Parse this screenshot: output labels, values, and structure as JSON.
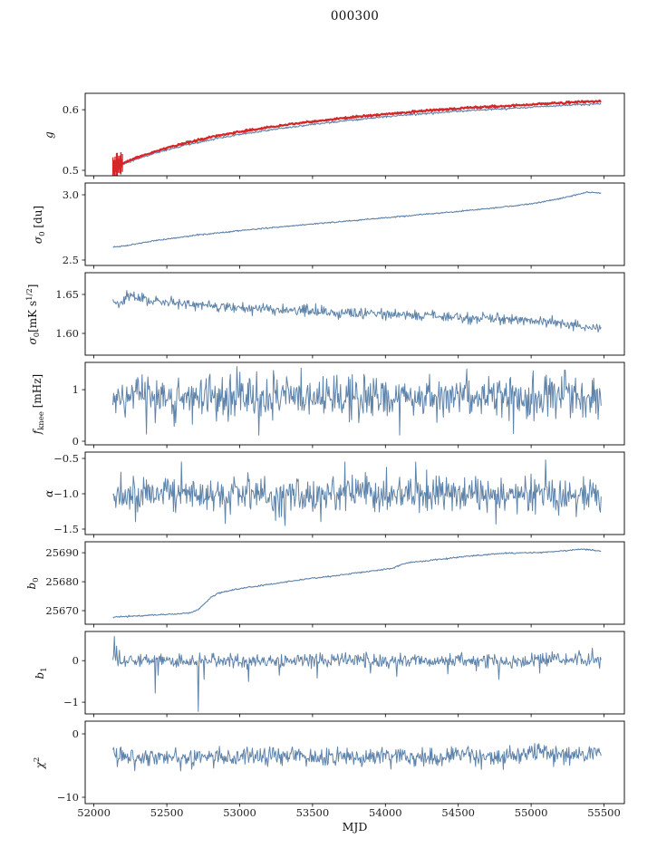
{
  "title": "000300",
  "xlabel": "MJD",
  "colors": {
    "series": "#5f84ab",
    "highlight": "#d62728",
    "frame": "#000000",
    "tick_text": "#222222"
  },
  "chart_data": {
    "type": "line",
    "xlim": [
      51940,
      55640
    ],
    "x_ticks": [
      52000,
      52500,
      53000,
      53500,
      54000,
      54500,
      55000,
      55500
    ],
    "x_start": 52130,
    "x_end": 55480,
    "n_points": 670,
    "panels": [
      {
        "ylabel": {
          "pre": "g",
          "sub": "",
          "mid": "",
          "sup": "",
          "post": ""
        },
        "ylim": [
          0.491,
          0.627
        ],
        "yticks": [
          {
            "v": 0.5,
            "label": "0.5"
          },
          {
            "v": 0.6,
            "label": "0.6"
          }
        ],
        "series": [
          {
            "name": "g-gain-fit",
            "color": "series",
            "width": 1.1,
            "noise": 0.0008,
            "anchors": [
              [
                52130,
                0.5035
              ],
              [
                52250,
                0.5145
              ],
              [
                52400,
                0.527
              ],
              [
                52600,
                0.54
              ],
              [
                52800,
                0.5505
              ],
              [
                53000,
                0.559
              ],
              [
                53200,
                0.5665
              ],
              [
                53400,
                0.573
              ],
              [
                53600,
                0.5785
              ],
              [
                53900,
                0.586
              ],
              [
                54200,
                0.5925
              ],
              [
                54500,
                0.5975
              ],
              [
                54800,
                0.6015
              ],
              [
                55000,
                0.604
              ],
              [
                55100,
                0.6055
              ],
              [
                55250,
                0.6075
              ],
              [
                55480,
                0.6095
              ]
            ]
          },
          {
            "name": "g-gain-measured",
            "color": "highlight",
            "width": 2.2,
            "noise": 0.0008,
            "errorbars": {
              "until": 52200,
              "half": 0.015
            },
            "anchors": [
              [
                52130,
                0.5045
              ],
              [
                52250,
                0.517
              ],
              [
                52400,
                0.53
              ],
              [
                52600,
                0.5435
              ],
              [
                52800,
                0.5545
              ],
              [
                53000,
                0.5635
              ],
              [
                53200,
                0.571
              ],
              [
                53400,
                0.5775
              ],
              [
                53600,
                0.583
              ],
              [
                53900,
                0.5905
              ],
              [
                54200,
                0.597
              ],
              [
                54500,
                0.602
              ],
              [
                54800,
                0.606
              ],
              [
                55000,
                0.6085
              ],
              [
                55100,
                0.61
              ],
              [
                55250,
                0.612
              ],
              [
                55480,
                0.614
              ]
            ]
          }
        ]
      },
      {
        "ylabel": {
          "pre": "σ",
          "sub": "0",
          "mid": "",
          "sup": "",
          "post": " [du]"
        },
        "ylim": [
          2.458,
          3.09
        ],
        "yticks": [
          {
            "v": 3.0,
            "label": "3.0"
          },
          {
            "v": 2.5,
            "label": "2.5"
          }
        ],
        "series": [
          {
            "name": "sigma0-du",
            "color": "series",
            "width": 1.1,
            "noise": 0.0025,
            "anchors": [
              [
                52130,
                2.598
              ],
              [
                52220,
                2.61
              ],
              [
                52400,
                2.645
              ],
              [
                52700,
                2.69
              ],
              [
                53000,
                2.725
              ],
              [
                53300,
                2.756
              ],
              [
                53600,
                2.785
              ],
              [
                53900,
                2.814
              ],
              [
                54200,
                2.843
              ],
              [
                54500,
                2.872
              ],
              [
                54800,
                2.905
              ],
              [
                55000,
                2.93
              ],
              [
                55200,
                2.97
              ],
              [
                55300,
                2.995
              ],
              [
                55380,
                3.02
              ],
              [
                55480,
                3.012
              ]
            ]
          }
        ]
      },
      {
        "ylabel": {
          "pre": "σ",
          "sub": "0",
          "mid": "[mK s",
          "sup": "1/2",
          "post": "]"
        },
        "ylim": [
          1.572,
          1.678
        ],
        "yticks": [
          {
            "v": 1.65,
            "label": "1.65"
          },
          {
            "v": 1.6,
            "label": "1.60"
          }
        ],
        "series": [
          {
            "name": "sigma0-mks",
            "color": "series",
            "width": 1.0,
            "noise": 0.0035,
            "anchors": [
              [
                52130,
                1.641
              ],
              [
                52170,
                1.634
              ],
              [
                52210,
                1.645
              ],
              [
                52260,
                1.648
              ],
              [
                52320,
                1.644
              ],
              [
                52400,
                1.641
              ],
              [
                52500,
                1.6415
              ],
              [
                52600,
                1.638
              ],
              [
                52700,
                1.636
              ],
              [
                52800,
                1.6365
              ],
              [
                52900,
                1.634
              ],
              [
                53000,
                1.6335
              ],
              [
                53100,
                1.632
              ],
              [
                53250,
                1.63
              ],
              [
                53400,
                1.6295
              ],
              [
                53550,
                1.628
              ],
              [
                53700,
                1.6265
              ],
              [
                53850,
                1.626
              ],
              [
                54000,
                1.6245
              ],
              [
                54150,
                1.623
              ],
              [
                54300,
                1.6225
              ],
              [
                54450,
                1.621
              ],
              [
                54600,
                1.6195
              ],
              [
                54750,
                1.619
              ],
              [
                54900,
                1.6175
              ],
              [
                55050,
                1.616
              ],
              [
                55150,
                1.6145
              ],
              [
                55250,
                1.611
              ],
              [
                55330,
                1.6085
              ],
              [
                55410,
                1.606
              ],
              [
                55480,
                1.608
              ]
            ]
          }
        ]
      },
      {
        "ylabel": {
          "pre": "f",
          "sub": "knee",
          "mid": "",
          "sup": "",
          "post": " [mHz]"
        },
        "ylim": [
          -0.07,
          1.53
        ],
        "yticks": [
          {
            "v": 1,
            "label": "1"
          },
          {
            "v": 0,
            "label": "0"
          }
        ],
        "series": [
          {
            "name": "fknee",
            "color": "series",
            "width": 1.0,
            "noise": 0.21,
            "spikes": [
              [
                52360,
                0.14
              ],
              [
                52980,
                1.45
              ],
              [
                53130,
                0.12
              ],
              [
                53420,
                1.42
              ],
              [
                54100,
                0.12
              ],
              [
                54560,
                1.4
              ],
              [
                54880,
                0.15
              ],
              [
                55230,
                1.38
              ]
            ],
            "anchors": [
              [
                52130,
                0.83
              ],
              [
                53000,
                0.86
              ],
              [
                54000,
                0.84
              ],
              [
                55480,
                0.86
              ]
            ]
          }
        ]
      },
      {
        "ylabel": {
          "pre": "α",
          "sub": "",
          "mid": "",
          "sup": "",
          "post": ""
        },
        "ylim": [
          -1.577,
          -0.41
        ],
        "yticks": [
          {
            "v": -0.5,
            "label": "−0.5"
          },
          {
            "v": -1.0,
            "label": "−1.0"
          },
          {
            "v": -1.5,
            "label": "−1.5"
          }
        ],
        "series": [
          {
            "name": "alpha",
            "color": "series",
            "width": 1.0,
            "noise": 0.135,
            "spikes": [
              [
                52600,
                -0.55
              ],
              [
                52900,
                -1.42
              ],
              [
                53310,
                -1.45
              ],
              [
                53720,
                -0.55
              ],
              [
                54210,
                -0.55
              ],
              [
                54760,
                -1.43
              ],
              [
                55100,
                -0.52
              ]
            ],
            "anchors": [
              [
                52130,
                -1.0
              ],
              [
                55480,
                -1.0
              ]
            ]
          }
        ]
      },
      {
        "ylabel": {
          "pre": "b",
          "sub": "0",
          "mid": "",
          "sup": "",
          "post": ""
        },
        "ylim": [
          25665.3,
          25693.8
        ],
        "yticks": [
          {
            "v": 25690,
            "label": "25690"
          },
          {
            "v": 25680,
            "label": "25680"
          },
          {
            "v": 25670,
            "label": "25670"
          }
        ],
        "series": [
          {
            "name": "b0-baseline",
            "color": "series",
            "width": 1.1,
            "noise": 0.12,
            "anchors": [
              [
                52130,
                25667.8
              ],
              [
                52300,
                25668.2
              ],
              [
                52450,
                25668.6
              ],
              [
                52600,
                25669.0
              ],
              [
                52680,
                25669.4
              ],
              [
                52720,
                25670.5
              ],
              [
                52760,
                25672.5
              ],
              [
                52800,
                25674.5
              ],
              [
                52850,
                25676.0
              ],
              [
                52950,
                25677.2
              ],
              [
                53050,
                25678.0
              ],
              [
                53200,
                25679.0
              ],
              [
                53350,
                25680.2
              ],
              [
                53500,
                25681.2
              ],
              [
                53650,
                25682.0
              ],
              [
                53800,
                25683.0
              ],
              [
                53950,
                25684.0
              ],
              [
                54050,
                25684.6
              ],
              [
                54120,
                25686.2
              ],
              [
                54200,
                25686.8
              ],
              [
                54350,
                25687.6
              ],
              [
                54500,
                25688.4
              ],
              [
                54650,
                25689.2
              ],
              [
                54800,
                25689.8
              ],
              [
                54950,
                25690.0
              ],
              [
                55100,
                25690.2
              ],
              [
                55250,
                25690.8
              ],
              [
                55350,
                25691.3
              ],
              [
                55420,
                25691.0
              ],
              [
                55480,
                25690.5
              ]
            ]
          }
        ]
      },
      {
        "ylabel": {
          "pre": "b",
          "sub": "1",
          "mid": "",
          "sup": "",
          "post": ""
        },
        "ylim": [
          -1.28,
          0.7
        ],
        "yticks": [
          {
            "v": 0,
            "label": "0"
          },
          {
            "v": -1,
            "label": "−1"
          }
        ],
        "series": [
          {
            "name": "b1-slope",
            "color": "series",
            "width": 1.0,
            "noise": 0.085,
            "spikes": [
              [
                52140,
                0.58
              ],
              [
                52155,
                0.35
              ],
              [
                52175,
                0.25
              ],
              [
                52420,
                -0.78
              ],
              [
                52440,
                -0.35
              ],
              [
                52715,
                -1.22
              ],
              [
                52755,
                -0.45
              ],
              [
                53060,
                -0.5
              ],
              [
                53270,
                -0.35
              ],
              [
                53530,
                -0.42
              ],
              [
                53900,
                -0.3
              ],
              [
                54080,
                -0.38
              ],
              [
                54430,
                -0.32
              ],
              [
                54780,
                -0.45
              ],
              [
                55060,
                -0.3
              ],
              [
                55420,
                0.3
              ]
            ],
            "anchors": [
              [
                52130,
                0.0
              ],
              [
                55480,
                0.0
              ]
            ]
          }
        ]
      },
      {
        "ylabel": {
          "pre": "χ",
          "sub": "",
          "mid": "",
          "sup": "2",
          "post": ""
        },
        "ylim": [
          -11.0,
          2.0
        ],
        "yticks": [
          {
            "v": 0,
            "label": "0"
          },
          {
            "v": -10,
            "label": "−10"
          }
        ],
        "series": [
          {
            "name": "chi2",
            "color": "series",
            "width": 1.0,
            "noise": 0.75,
            "anchors": [
              [
                52130,
                -3.1
              ],
              [
                52300,
                -3.9
              ],
              [
                52450,
                -3.4
              ],
              [
                52600,
                -4.1
              ],
              [
                52750,
                -3.5
              ],
              [
                52900,
                -4.0
              ],
              [
                53050,
                -3.4
              ],
              [
                53200,
                -3.9
              ],
              [
                53350,
                -3.2
              ],
              [
                53500,
                -3.8
              ],
              [
                53700,
                -3.4
              ],
              [
                53900,
                -3.9
              ],
              [
                54100,
                -3.3
              ],
              [
                54300,
                -3.8
              ],
              [
                54500,
                -3.2
              ],
              [
                54700,
                -3.7
              ],
              [
                54900,
                -3.3
              ],
              [
                55050,
                -3.0
              ],
              [
                55200,
                -3.5
              ],
              [
                55480,
                -3.2
              ]
            ]
          }
        ]
      }
    ]
  }
}
